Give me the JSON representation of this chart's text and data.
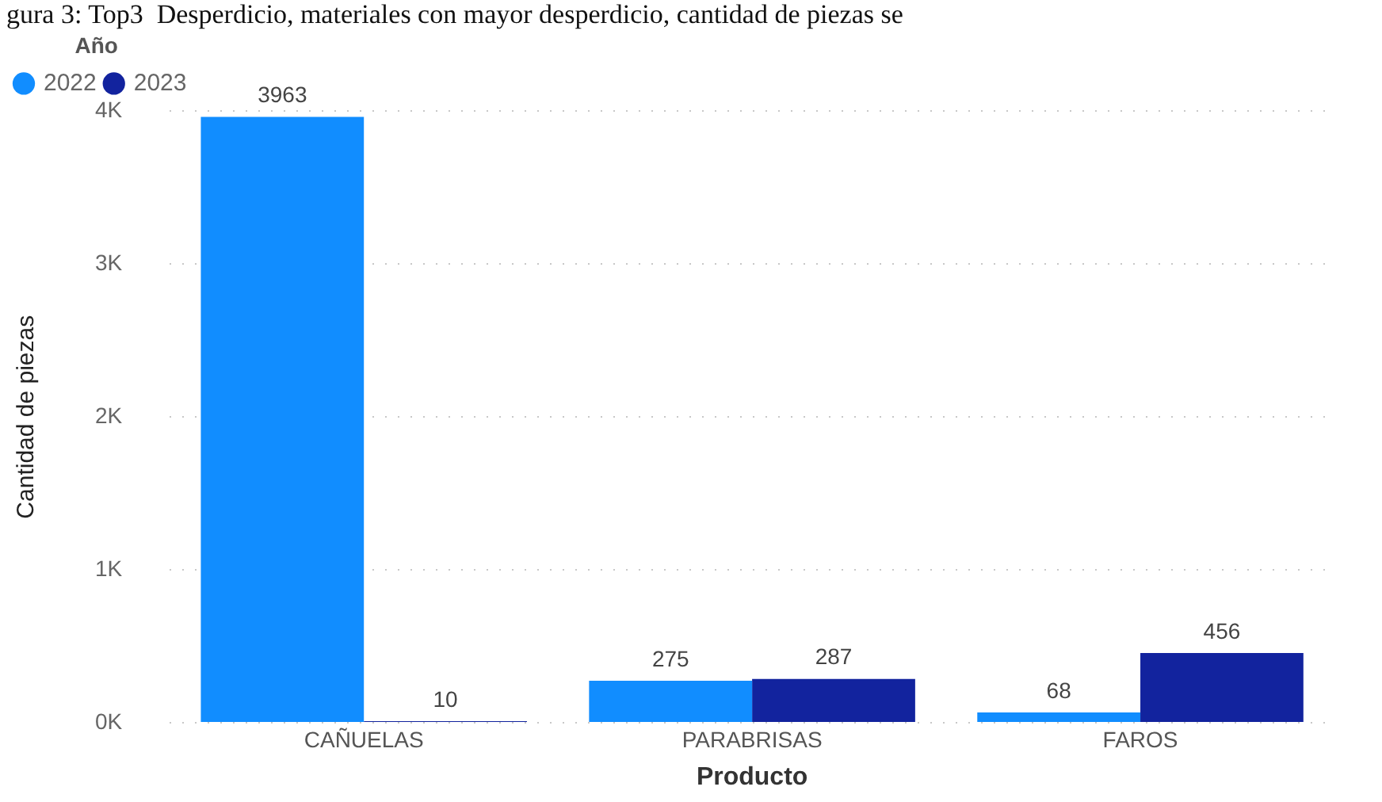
{
  "chart_data": {
    "type": "bar",
    "title": "gura 3: Top3  Desperdicio, materiales con mayor desperdicio, cantidad de piezas se",
    "xlabel": "Producto",
    "ylabel": "Cantidad de piezas",
    "legend_title": "Año",
    "categories": [
      "CAÑUELAS",
      "PARABRISAS",
      "FAROS"
    ],
    "series": [
      {
        "name": "2022",
        "color": "#118dff",
        "values": [
          3963,
          275,
          68
        ]
      },
      {
        "name": "2023",
        "color": "#12239e",
        "values": [
          10,
          287,
          456
        ]
      }
    ],
    "ylim": [
      0,
      4000
    ],
    "yticks": [
      {
        "value": 0,
        "label": "0K"
      },
      {
        "value": 1000,
        "label": "1K"
      },
      {
        "value": 2000,
        "label": "2K"
      },
      {
        "value": 3000,
        "label": "3K"
      },
      {
        "value": 4000,
        "label": "4K"
      }
    ],
    "grid": "y",
    "legend": "top left",
    "data_labels": true
  }
}
